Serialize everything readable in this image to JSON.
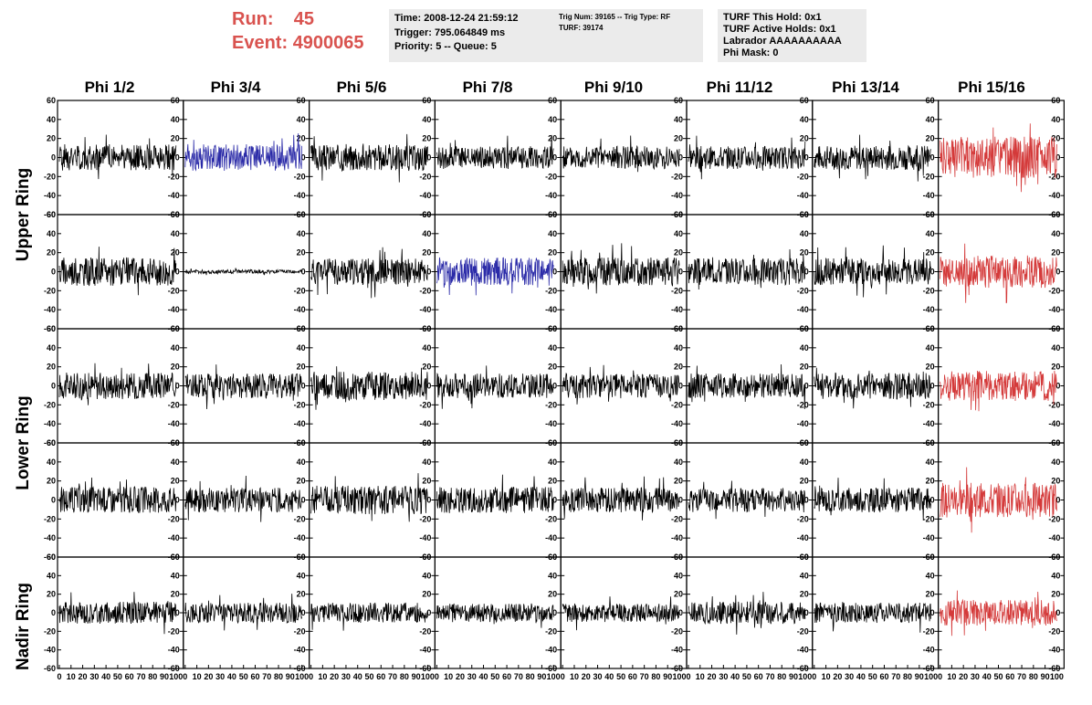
{
  "header": {
    "run_label": "Run:",
    "run_value": "45",
    "event_label": "Event:",
    "event_value": "4900065",
    "info_box_1": [
      "Time: 2008-12-24 21:59:12",
      "Trigger: 795.064849 ms",
      "Priority: 5 -- Queue: 5"
    ],
    "info_box_2": [
      "Trig Num: 39165 -- Trig Type: RF",
      "",
      "TURF: 39174"
    ],
    "info_box_3": [
      "TURF This Hold: 0x1",
      "TURF Active Holds: 0x1",
      "Labrador AAAAAAAAAA",
      "Phi Mask: 0"
    ]
  },
  "phi_labels": [
    "Phi 1/2",
    "Phi 3/4",
    "Phi 5/6",
    "Phi 7/8",
    "Phi 9/10",
    "Phi 11/12",
    "Phi 13/14",
    "Phi 15/16"
  ],
  "ring_labels": [
    "Upper Ring",
    "Lower Ring",
    "Nadir Ring"
  ],
  "colors": {
    "normal": "#000000",
    "highlight_blue": "#2b2ba8",
    "highlight_red": "#d43a3a",
    "header_red": "#d9534f",
    "box_bg": "#ebebeb"
  },
  "chart_data": {
    "type": "line",
    "title": "",
    "grid": "off",
    "rows": 5,
    "cols": 8,
    "xlim": [
      0,
      100
    ],
    "ylim": [
      -60,
      60
    ],
    "x_ticks": [
      0,
      10,
      20,
      30,
      40,
      50,
      60,
      70,
      80,
      90,
      100
    ],
    "x_tick_labels": [
      "0",
      "10",
      "20",
      "30",
      "40",
      "50",
      "60",
      "70",
      "80",
      "90",
      "100"
    ],
    "y_ticks": [
      -60,
      -40,
      -20,
      0,
      20,
      40,
      60
    ],
    "y_tick_labels": [
      "-60",
      "-40",
      "-20",
      "0",
      "20",
      "40",
      "60"
    ],
    "panels": [
      {
        "row": 0,
        "col": 0,
        "color": "normal",
        "amplitude": 14,
        "seed": 1
      },
      {
        "row": 0,
        "col": 1,
        "color": "highlight_blue",
        "amplitude": 14,
        "seed": 2
      },
      {
        "row": 0,
        "col": 2,
        "color": "normal",
        "amplitude": 14,
        "seed": 3
      },
      {
        "row": 0,
        "col": 3,
        "color": "normal",
        "amplitude": 12,
        "seed": 4
      },
      {
        "row": 0,
        "col": 4,
        "color": "normal",
        "amplitude": 12,
        "seed": 5
      },
      {
        "row": 0,
        "col": 5,
        "color": "normal",
        "amplitude": 12,
        "seed": 6
      },
      {
        "row": 0,
        "col": 6,
        "color": "normal",
        "amplitude": 13,
        "seed": 7
      },
      {
        "row": 0,
        "col": 7,
        "color": "highlight_red",
        "amplitude": 22,
        "seed": 8
      },
      {
        "row": 1,
        "col": 0,
        "color": "normal",
        "amplitude": 15,
        "seed": 9
      },
      {
        "row": 1,
        "col": 1,
        "color": "normal",
        "amplitude": 2,
        "seed": 10
      },
      {
        "row": 1,
        "col": 2,
        "color": "normal",
        "amplitude": 14,
        "seed": 11
      },
      {
        "row": 1,
        "col": 3,
        "color": "highlight_blue",
        "amplitude": 15,
        "seed": 12
      },
      {
        "row": 1,
        "col": 4,
        "color": "normal",
        "amplitude": 15,
        "seed": 13
      },
      {
        "row": 1,
        "col": 5,
        "color": "normal",
        "amplitude": 14,
        "seed": 14
      },
      {
        "row": 1,
        "col": 6,
        "color": "normal",
        "amplitude": 14,
        "seed": 15
      },
      {
        "row": 1,
        "col": 7,
        "color": "highlight_red",
        "amplitude": 17,
        "seed": 16
      },
      {
        "row": 2,
        "col": 0,
        "color": "normal",
        "amplitude": 14,
        "seed": 17
      },
      {
        "row": 2,
        "col": 1,
        "color": "normal",
        "amplitude": 13,
        "seed": 18
      },
      {
        "row": 2,
        "col": 2,
        "color": "normal",
        "amplitude": 15,
        "seed": 19
      },
      {
        "row": 2,
        "col": 3,
        "color": "normal",
        "amplitude": 13,
        "seed": 20
      },
      {
        "row": 2,
        "col": 4,
        "color": "normal",
        "amplitude": 13,
        "seed": 21
      },
      {
        "row": 2,
        "col": 5,
        "color": "normal",
        "amplitude": 13,
        "seed": 22
      },
      {
        "row": 2,
        "col": 6,
        "color": "normal",
        "amplitude": 14,
        "seed": 23
      },
      {
        "row": 2,
        "col": 7,
        "color": "highlight_red",
        "amplitude": 16,
        "seed": 24
      },
      {
        "row": 3,
        "col": 0,
        "color": "normal",
        "amplitude": 14,
        "seed": 25
      },
      {
        "row": 3,
        "col": 1,
        "color": "normal",
        "amplitude": 13,
        "seed": 26
      },
      {
        "row": 3,
        "col": 2,
        "color": "normal",
        "amplitude": 15,
        "seed": 27
      },
      {
        "row": 3,
        "col": 3,
        "color": "normal",
        "amplitude": 14,
        "seed": 28
      },
      {
        "row": 3,
        "col": 4,
        "color": "normal",
        "amplitude": 13,
        "seed": 29
      },
      {
        "row": 3,
        "col": 5,
        "color": "normal",
        "amplitude": 13,
        "seed": 30
      },
      {
        "row": 3,
        "col": 6,
        "color": "normal",
        "amplitude": 13,
        "seed": 31
      },
      {
        "row": 3,
        "col": 7,
        "color": "highlight_red",
        "amplitude": 18,
        "seed": 32
      },
      {
        "row": 4,
        "col": 0,
        "color": "normal",
        "amplitude": 12,
        "seed": 33
      },
      {
        "row": 4,
        "col": 1,
        "color": "normal",
        "amplitude": 11,
        "seed": 34
      },
      {
        "row": 4,
        "col": 2,
        "color": "normal",
        "amplitude": 11,
        "seed": 35
      },
      {
        "row": 4,
        "col": 3,
        "color": "normal",
        "amplitude": 10,
        "seed": 36
      },
      {
        "row": 4,
        "col": 4,
        "color": "normal",
        "amplitude": 10,
        "seed": 37
      },
      {
        "row": 4,
        "col": 5,
        "color": "normal",
        "amplitude": 12,
        "seed": 38
      },
      {
        "row": 4,
        "col": 6,
        "color": "normal",
        "amplitude": 11,
        "seed": 39
      },
      {
        "row": 4,
        "col": 7,
        "color": "highlight_red",
        "amplitude": 14,
        "seed": 40
      }
    ]
  }
}
